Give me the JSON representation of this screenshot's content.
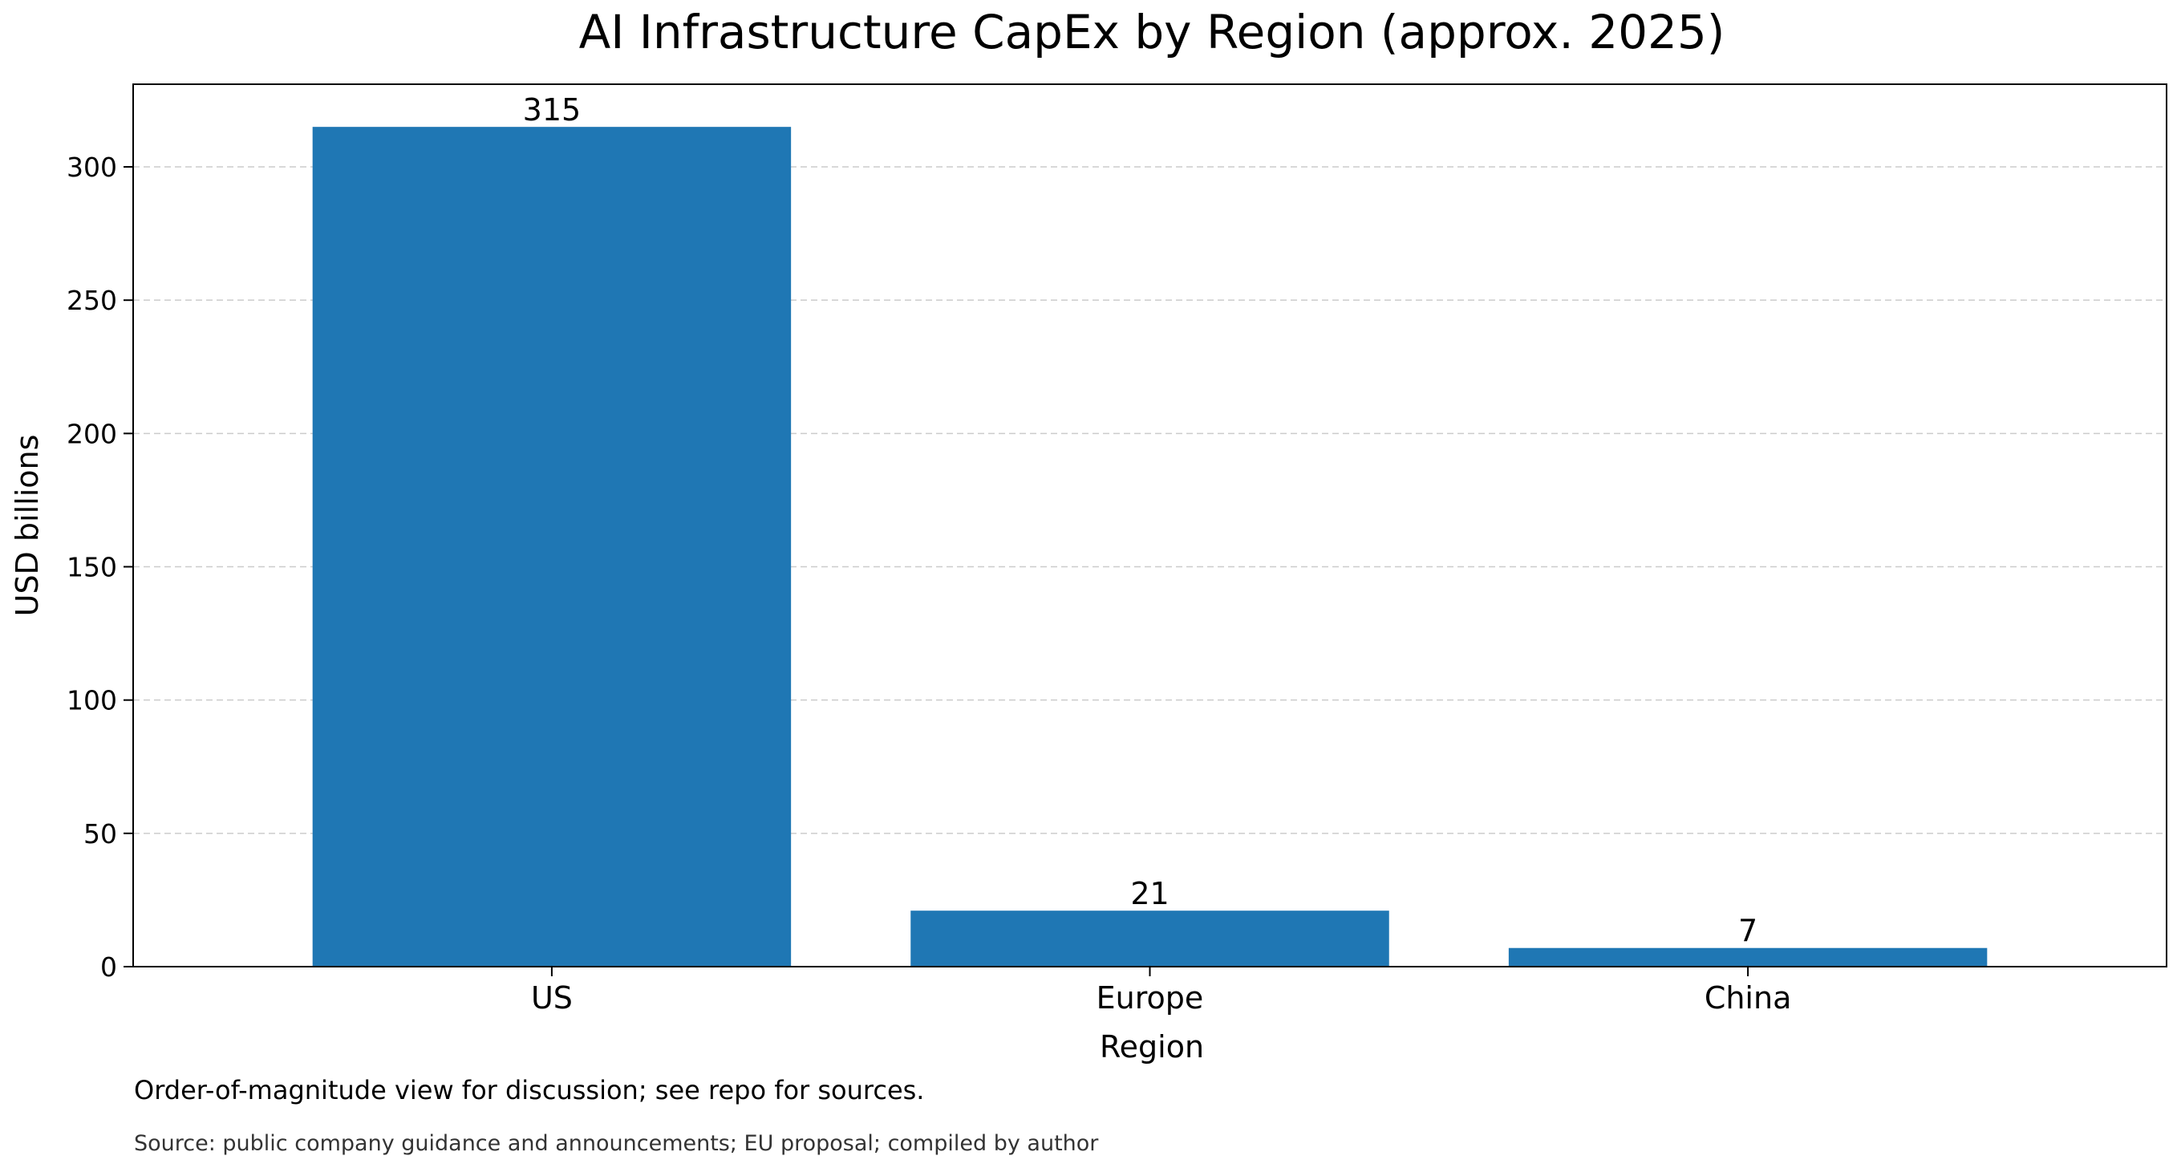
{
  "chart_data": {
    "type": "bar",
    "title": "AI Infrastructure CapEx by Region (approx. 2025)",
    "xlabel": "Region",
    "ylabel": "USD billions",
    "categories": [
      "US",
      "Europe",
      "China"
    ],
    "values": [
      315,
      21,
      7
    ],
    "data_labels": [
      "315",
      "21",
      "7"
    ],
    "ylim": [
      0,
      331
    ],
    "yticks": [
      0,
      50,
      100,
      150,
      200,
      250,
      300
    ],
    "grid": "y-dashed",
    "bar_color": "#1f77b4",
    "legend": "none",
    "notes": [
      "Order-of-magnitude view for discussion; see repo for sources.",
      "Source: public company guidance and announcements; EU proposal; compiled by author"
    ]
  }
}
